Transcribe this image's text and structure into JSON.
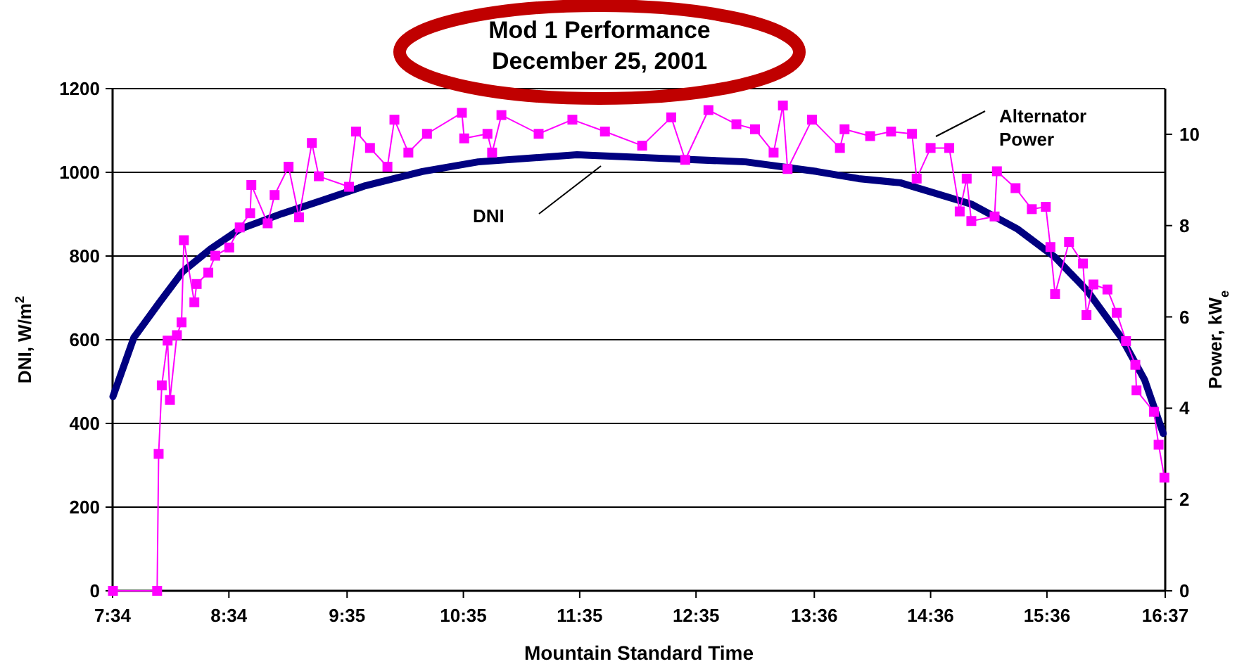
{
  "chart_data": {
    "type": "line",
    "title": "Mod 1 Performance\nDecember 25, 2001",
    "xlabel": "Mountain Standard Time",
    "ylabel": "DNI, W/m$^{2}$",
    "y2label": "Power, kW$_{e}$",
    "xlim": [
      7.567,
      16.617
    ],
    "xticks": [
      {
        "value": 7.567,
        "label": "7:34"
      },
      {
        "value": 8.567,
        "label": "8:34"
      },
      {
        "value": 9.583,
        "label": "9:35"
      },
      {
        "value": 10.583,
        "label": "10:35"
      },
      {
        "value": 11.583,
        "label": "11:35"
      },
      {
        "value": 12.583,
        "label": "12:35"
      },
      {
        "value": 13.6,
        "label": "13:36"
      },
      {
        "value": 14.6,
        "label": "14:36"
      },
      {
        "value": 15.6,
        "label": "15:36"
      },
      {
        "value": 16.617,
        "label": "16:37"
      }
    ],
    "ylim": [
      0,
      1200
    ],
    "yticks": [
      0,
      200,
      400,
      600,
      800,
      1000,
      1200
    ],
    "y2lim": [
      0,
      11
    ],
    "y2ticks": [
      0,
      2,
      4,
      6,
      8,
      10
    ],
    "grid": "y",
    "line_style": "solid",
    "annotations": [
      "DNI",
      "Alternator Power"
    ],
    "series": [
      {
        "marker": "none",
        "color": "#000080",
        "x": [
          7.57,
          7.75,
          7.97,
          8.17,
          8.41,
          8.66,
          9.02,
          9.38,
          9.74,
          10.23,
          10.71,
          11.56,
          12.41,
          13.01,
          13.62,
          13.98,
          14.34,
          14.95,
          15.35,
          15.67,
          15.95,
          16.24,
          16.44,
          16.6
        ],
        "values": [
          464,
          605,
          689,
          763,
          817,
          864,
          901,
          934,
          968,
          1002,
          1025,
          1042,
          1032,
          1025,
          1002,
          985,
          975,
          924,
          864,
          797,
          716,
          605,
          504,
          376
        ]
      },
      {
        "marker": "square",
        "color": "#ff00ff",
        "axis": "y2",
        "x": [
          7.57,
          7.95,
          7.963,
          7.99,
          8.04,
          8.06,
          8.12,
          8.16,
          8.18,
          8.27,
          8.29,
          8.39,
          8.45,
          8.57,
          8.66,
          8.75,
          8.76,
          8.9,
          8.96,
          9.08,
          9.17,
          9.28,
          9.34,
          9.6,
          9.66,
          9.78,
          9.93,
          9.99,
          10.11,
          10.27,
          10.57,
          10.59,
          10.79,
          10.83,
          10.91,
          11.23,
          11.52,
          11.8,
          12.12,
          12.37,
          12.49,
          12.69,
          12.93,
          13.09,
          13.25,
          13.33,
          13.37,
          13.58,
          13.82,
          13.86,
          14.08,
          14.26,
          14.44,
          14.48,
          14.6,
          14.76,
          14.85,
          14.91,
          14.95,
          15.15,
          15.17,
          15.33,
          15.47,
          15.59,
          15.63,
          15.67,
          15.79,
          15.91,
          15.94,
          16,
          16.12,
          16.2,
          16.28,
          16.36,
          16.37,
          16.52,
          16.56,
          16.61
        ],
        "values": [
          0,
          0,
          3.0,
          4.5,
          5.48,
          4.18,
          5.6,
          5.88,
          7.68,
          6.32,
          6.72,
          6.97,
          7.34,
          7.52,
          7.96,
          8.27,
          8.89,
          8.05,
          8.67,
          9.29,
          8.18,
          9.81,
          9.08,
          8.85,
          10.06,
          9.7,
          9.29,
          10.32,
          9.6,
          10.01,
          10.47,
          9.91,
          10.01,
          9.6,
          10.42,
          10.01,
          10.32,
          10.06,
          9.75,
          10.37,
          9.44,
          10.53,
          10.22,
          10.11,
          9.6,
          10.63,
          9.24,
          10.32,
          9.7,
          10.11,
          9.96,
          10.06,
          10.01,
          9.03,
          9.7,
          9.7,
          8.31,
          9.03,
          8.1,
          8.2,
          9.19,
          8.82,
          8.36,
          8.41,
          7.53,
          6.5,
          7.64,
          7.17,
          6.04,
          6.71,
          6.6,
          6.09,
          5.47,
          4.95,
          4.39,
          3.92,
          3.2,
          2.48
        ]
      }
    ]
  }
}
